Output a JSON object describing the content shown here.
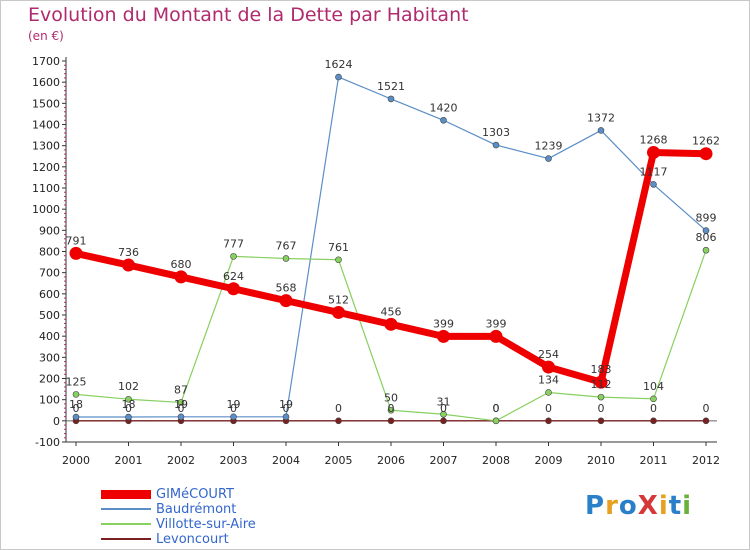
{
  "title": "Evolution du Montant de la Dette par Habitant",
  "unit": "(en €)",
  "logo": {
    "text": "ProXiti",
    "colors": [
      "#2a7fc9",
      "#e8a020",
      "#2a7fc9",
      "#d43838",
      "#e8a020",
      "#2a7fc9",
      "#6ab03c"
    ]
  },
  "chart_data": {
    "type": "line",
    "title": "Evolution du Montant de la Dette par Habitant",
    "ylabel": "(en €)",
    "x": [
      "2000",
      "2001",
      "2002",
      "2003",
      "2004",
      "2005",
      "2006",
      "2007",
      "2008",
      "2009",
      "2010",
      "2011",
      "2012"
    ],
    "ylim": [
      -100,
      1700
    ],
    "yticks": [
      -100,
      0,
      100,
      200,
      300,
      400,
      500,
      600,
      700,
      800,
      900,
      1000,
      1100,
      1200,
      1300,
      1400,
      1500,
      1600,
      1700
    ],
    "grid": false,
    "legend_position": "bottom-left",
    "series": [
      {
        "name": "GIMéCOURT",
        "color": "#ee0000",
        "values": [
          791,
          736,
          680,
          624,
          568,
          512,
          456,
          399,
          399,
          254,
          183,
          1268,
          1262
        ],
        "labels": [
          "791",
          "736",
          "680",
          "624",
          "568",
          "512",
          "456",
          "399",
          "399",
          "254",
          "183",
          "1268",
          "1262"
        ]
      },
      {
        "name": "Baudrémont",
        "color": "#5b8ec7",
        "values": [
          18,
          18,
          19,
          19,
          19,
          1624,
          1521,
          1420,
          1303,
          1239,
          1372,
          1117,
          899
        ],
        "labels": [
          "18",
          "18",
          "19",
          "19",
          "19",
          "1624",
          "1521",
          "1420",
          "1303",
          "1239",
          "1372",
          "1117",
          "899"
        ]
      },
      {
        "name": "Villotte-sur-Aire",
        "color": "#88d060",
        "values": [
          125,
          102,
          87,
          777,
          767,
          761,
          50,
          31,
          0,
          134,
          112,
          104,
          806
        ],
        "labels": [
          "125",
          "102",
          "87",
          "777",
          "767",
          "761",
          "50",
          "31",
          "0",
          "134",
          "112",
          "104",
          "806"
        ]
      },
      {
        "name": "Levoncourt",
        "color": "#7a2020",
        "values": [
          0,
          0,
          0,
          0,
          0,
          0,
          0,
          0,
          0,
          0,
          0,
          0,
          0
        ],
        "labels": [
          "0",
          "0",
          "0",
          "0",
          "0",
          "0",
          "0",
          "0",
          "0",
          "0",
          "0",
          "0",
          "0"
        ]
      }
    ]
  }
}
